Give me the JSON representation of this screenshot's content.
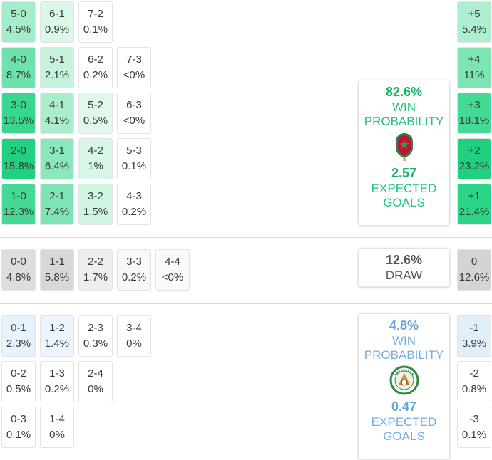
{
  "chart_data": {
    "type": "heatmap",
    "win_cells": [
      {
        "score": "5-0",
        "prob": "4.5%",
        "col": 0,
        "row": 0
      },
      {
        "score": "6-1",
        "prob": "0.9%",
        "col": 1,
        "row": 0
      },
      {
        "score": "7-2",
        "prob": "0.1%",
        "col": 2,
        "row": 0
      },
      {
        "score": "4-0",
        "prob": "8.7%",
        "col": 0,
        "row": 1
      },
      {
        "score": "5-1",
        "prob": "2.1%",
        "col": 1,
        "row": 1
      },
      {
        "score": "6-2",
        "prob": "0.2%",
        "col": 2,
        "row": 1
      },
      {
        "score": "7-3",
        "prob": "<0%",
        "col": 3,
        "row": 1
      },
      {
        "score": "3-0",
        "prob": "13.5%",
        "col": 0,
        "row": 2
      },
      {
        "score": "4-1",
        "prob": "4.1%",
        "col": 1,
        "row": 2
      },
      {
        "score": "5-2",
        "prob": "0.5%",
        "col": 2,
        "row": 2
      },
      {
        "score": "6-3",
        "prob": "<0%",
        "col": 3,
        "row": 2
      },
      {
        "score": "2-0",
        "prob": "15.8%",
        "col": 0,
        "row": 3
      },
      {
        "score": "3-1",
        "prob": "6.4%",
        "col": 1,
        "row": 3
      },
      {
        "score": "4-2",
        "prob": "1%",
        "col": 2,
        "row": 3
      },
      {
        "score": "5-3",
        "prob": "0.1%",
        "col": 3,
        "row": 3
      },
      {
        "score": "1-0",
        "prob": "12.3%",
        "col": 0,
        "row": 4
      },
      {
        "score": "2-1",
        "prob": "7.4%",
        "col": 1,
        "row": 4
      },
      {
        "score": "3-2",
        "prob": "1.5%",
        "col": 2,
        "row": 4
      },
      {
        "score": "4-3",
        "prob": "0.2%",
        "col": 3,
        "row": 4
      }
    ],
    "draw_cells": [
      {
        "score": "0-0",
        "prob": "4.8%",
        "col": 0
      },
      {
        "score": "1-1",
        "prob": "5.8%",
        "col": 1
      },
      {
        "score": "2-2",
        "prob": "1.7%",
        "col": 2
      },
      {
        "score": "3-3",
        "prob": "0.2%",
        "col": 3
      },
      {
        "score": "4-4",
        "prob": "<0%",
        "col": 4
      }
    ],
    "loss_cells": [
      {
        "score": "0-1",
        "prob": "2.3%",
        "col": 0,
        "row": 0
      },
      {
        "score": "1-2",
        "prob": "1.4%",
        "col": 1,
        "row": 0
      },
      {
        "score": "2-3",
        "prob": "0.3%",
        "col": 2,
        "row": 0
      },
      {
        "score": "3-4",
        "prob": "0%",
        "col": 3,
        "row": 0
      },
      {
        "score": "0-2",
        "prob": "0.5%",
        "col": 0,
        "row": 1
      },
      {
        "score": "1-3",
        "prob": "0.2%",
        "col": 1,
        "row": 1
      },
      {
        "score": "2-4",
        "prob": "0%",
        "col": 2,
        "row": 1
      },
      {
        "score": "0-3",
        "prob": "0.1%",
        "col": 0,
        "row": 2
      },
      {
        "score": "1-4",
        "prob": "0%",
        "col": 1,
        "row": 2
      }
    ],
    "margin_cells": [
      {
        "margin": "+5",
        "prob": "5.4%",
        "kind": "win"
      },
      {
        "margin": "+4",
        "prob": "11%",
        "kind": "win"
      },
      {
        "margin": "+3",
        "prob": "18.1%",
        "kind": "win"
      },
      {
        "margin": "+2",
        "prob": "23.2%",
        "kind": "win"
      },
      {
        "margin": "+1",
        "prob": "21.4%",
        "kind": "win"
      },
      {
        "margin": "0",
        "prob": "12.6%",
        "kind": "draw"
      },
      {
        "margin": "-1",
        "prob": "3.9%",
        "kind": "loss"
      },
      {
        "margin": "-2",
        "prob": "0.8%",
        "kind": "loss"
      },
      {
        "margin": "-3",
        "prob": "0.1%",
        "kind": "loss"
      }
    ]
  },
  "home_card": {
    "win_prob": "82.6%",
    "win_label_1": "WIN",
    "win_label_2": "PROBABILITY",
    "xg": "2.57",
    "xg_label_1": "EXPECTED",
    "xg_label_2": "GOALS",
    "crest_icon": "morocco-crest-icon"
  },
  "draw_card": {
    "prob": "12.6%",
    "label": "DRAW"
  },
  "away_card": {
    "win_prob": "4.8%",
    "win_label_1": "WIN",
    "win_label_2": "PROBABILITY",
    "xg": "0.47",
    "xg_label_1": "EXPECTED",
    "xg_label_2": "GOALS",
    "crest_icon": "fenifoot-crest-icon"
  },
  "colors": {
    "win_accent": "#18b06a",
    "loss_accent": "#6aa6d9",
    "draw_accent": "#555555"
  }
}
